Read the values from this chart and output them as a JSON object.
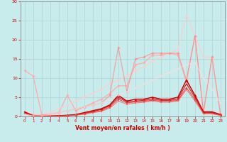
{
  "xlabel": "Vent moyen/en rafales ( km/h )",
  "background_color": "#c8ecec",
  "grid_color": "#b0d8d8",
  "xlim": [
    -0.5,
    23.5
  ],
  "ylim": [
    0,
    30
  ],
  "yticks": [
    0,
    5,
    10,
    15,
    20,
    25,
    30
  ],
  "xticks": [
    0,
    1,
    2,
    3,
    4,
    5,
    6,
    7,
    8,
    9,
    10,
    11,
    12,
    13,
    14,
    15,
    16,
    17,
    18,
    19,
    20,
    21,
    22,
    23
  ],
  "series": [
    {
      "x": [
        0,
        1,
        2,
        3,
        4,
        5,
        6,
        7,
        8,
        9,
        10,
        11,
        12,
        13,
        14,
        15,
        16,
        17,
        18,
        19,
        20,
        21,
        22,
        23
      ],
      "y": [
        12,
        10.5,
        0.5,
        0.5,
        1.0,
        5.5,
        1.5,
        2.5,
        3.5,
        4.5,
        6.0,
        8.0,
        8.0,
        13.5,
        14.0,
        16.0,
        16.0,
        16.5,
        16.0,
        9.0,
        21.0,
        1.0,
        15.5,
        0.5
      ],
      "color": "#ffaaaa",
      "marker": "D",
      "markersize": 2,
      "linewidth": 0.9,
      "alpha": 1.0
    },
    {
      "x": [
        0,
        1,
        2,
        3,
        4,
        5,
        6,
        7,
        8,
        9,
        10,
        11,
        12,
        13,
        14,
        15,
        16,
        17,
        18,
        19,
        20,
        21,
        22,
        23
      ],
      "y": [
        1.0,
        0.5,
        0.5,
        1.0,
        2.0,
        3.0,
        4.0,
        5.0,
        6.0,
        7.0,
        8.5,
        9.5,
        10.5,
        12.0,
        13.0,
        14.5,
        15.5,
        16.5,
        17.5,
        26.5,
        21.0,
        15.5,
        15.5,
        0.5
      ],
      "color": "#ffcccc",
      "marker": "D",
      "markersize": 2,
      "linewidth": 0.8,
      "alpha": 0.9
    },
    {
      "x": [
        0,
        1,
        2,
        3,
        4,
        5,
        6,
        7,
        8,
        9,
        10,
        11,
        12,
        13,
        14,
        15,
        16,
        17,
        18,
        19,
        20,
        21,
        22,
        23
      ],
      "y": [
        1.0,
        0.3,
        0.3,
        0.5,
        1.0,
        1.5,
        2.0,
        2.5,
        3.0,
        3.5,
        5.5,
        18.0,
        6.5,
        15.0,
        15.5,
        16.5,
        16.5,
        16.5,
        16.5,
        9.5,
        21.0,
        1.0,
        15.5,
        0.5
      ],
      "color": "#ff8888",
      "marker": "D",
      "markersize": 2,
      "linewidth": 0.8,
      "alpha": 0.8
    },
    {
      "x": [
        0,
        1,
        2,
        3,
        4,
        5,
        6,
        7,
        8,
        9,
        10,
        11,
        12,
        13,
        14,
        15,
        16,
        17,
        18,
        19,
        20,
        21,
        22,
        23
      ],
      "y": [
        1.2,
        0.2,
        0.1,
        0.1,
        0.2,
        0.3,
        0.5,
        1.0,
        1.5,
        2.0,
        3.0,
        5.5,
        4.0,
        4.5,
        4.5,
        5.0,
        4.5,
        4.5,
        5.0,
        9.5,
        5.5,
        1.2,
        1.2,
        0.5
      ],
      "color": "#cc0000",
      "marker": "^",
      "markersize": 2.5,
      "linewidth": 1.1,
      "alpha": 1.0
    },
    {
      "x": [
        0,
        1,
        2,
        3,
        4,
        5,
        6,
        7,
        8,
        9,
        10,
        11,
        12,
        13,
        14,
        15,
        16,
        17,
        18,
        19,
        20,
        21,
        22,
        23
      ],
      "y": [
        1.0,
        0.15,
        0.08,
        0.08,
        0.15,
        0.25,
        0.4,
        0.8,
        1.3,
        1.8,
        2.8,
        5.0,
        3.8,
        4.0,
        4.2,
        4.5,
        4.2,
        4.2,
        4.5,
        8.5,
        5.0,
        1.0,
        1.0,
        0.4
      ],
      "color": "#dd1111",
      "marker": "^",
      "markersize": 2,
      "linewidth": 0.9,
      "alpha": 0.9
    },
    {
      "x": [
        0,
        1,
        2,
        3,
        4,
        5,
        6,
        7,
        8,
        9,
        10,
        11,
        12,
        13,
        14,
        15,
        16,
        17,
        18,
        19,
        20,
        21,
        22,
        23
      ],
      "y": [
        0.8,
        0.1,
        0.05,
        0.05,
        0.1,
        0.2,
        0.35,
        0.7,
        1.1,
        1.5,
        2.5,
        4.5,
        3.5,
        3.8,
        4.0,
        4.2,
        4.0,
        4.0,
        4.2,
        7.5,
        4.5,
        0.8,
        0.8,
        0.3
      ],
      "color": "#ee3333",
      "marker": "s",
      "markersize": 2,
      "linewidth": 0.8,
      "alpha": 0.85
    },
    {
      "x": [
        0,
        1,
        2,
        3,
        4,
        5,
        6,
        7,
        8,
        9,
        10,
        11,
        12,
        13,
        14,
        15,
        16,
        17,
        18,
        19,
        20,
        21,
        22,
        23
      ],
      "y": [
        0.7,
        0.08,
        0.04,
        0.04,
        0.08,
        0.15,
        0.3,
        0.6,
        1.0,
        1.3,
        2.2,
        4.0,
        3.2,
        3.5,
        3.7,
        4.0,
        3.7,
        3.7,
        4.0,
        7.0,
        4.0,
        0.7,
        0.7,
        0.25
      ],
      "color": "#ff5555",
      "marker": "s",
      "markersize": 1.5,
      "linewidth": 0.7,
      "alpha": 0.8
    },
    {
      "x": [
        0,
        1,
        2,
        3,
        4,
        5,
        6,
        7,
        8,
        9,
        10,
        11,
        12,
        13,
        14,
        15,
        16,
        17,
        18,
        19,
        20,
        21,
        22,
        23
      ],
      "y": [
        0.5,
        0.2,
        0.2,
        0.5,
        1.0,
        1.5,
        2.0,
        2.5,
        3.0,
        3.5,
        4.5,
        5.5,
        6.5,
        7.5,
        8.5,
        9.5,
        10.5,
        11.5,
        12.5,
        13.5,
        14.0,
        10.0,
        7.0,
        3.5
      ],
      "color": "#ffdddd",
      "marker": "D",
      "markersize": 1.5,
      "linewidth": 0.7,
      "alpha": 0.8
    }
  ]
}
